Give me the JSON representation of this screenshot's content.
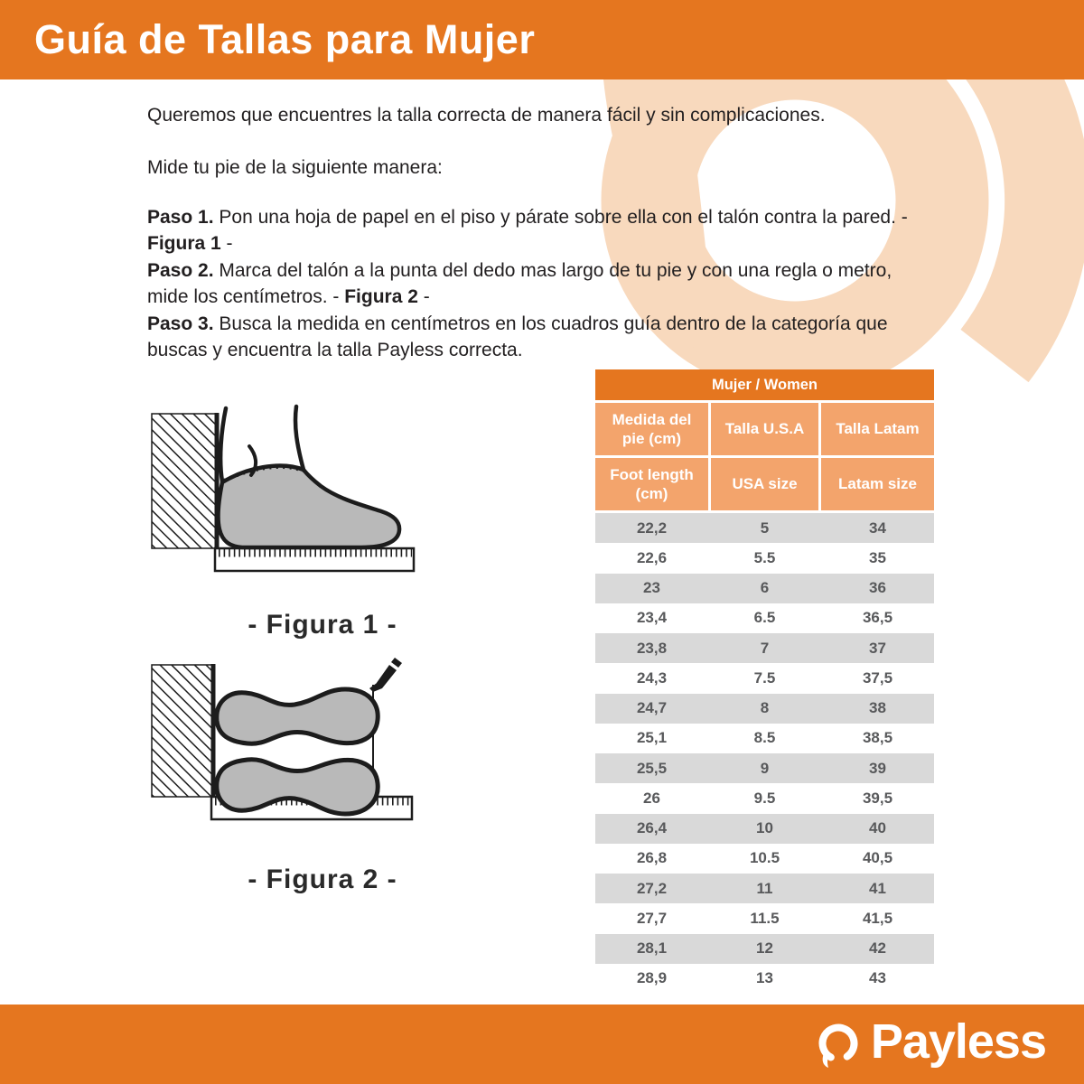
{
  "header": {
    "title": "Guía de Tallas para Mujer"
  },
  "intro": {
    "line1": "Queremos que encuentres la talla correcta de manera fácil y sin complicaciones.",
    "line2": "Mide tu pie de la siguiente manera:"
  },
  "steps": [
    {
      "label": "Paso 1.",
      "before": " Pon una hoja de papel en el piso y párate sobre ella con el talón contra la pared. - ",
      "figure": "Figura 1",
      "after": " -"
    },
    {
      "label": "Paso 2.",
      "before": " Marca del talón a la punta del dedo mas largo de tu pie y con una regla o metro, mide los centímetros. - ",
      "figure": "Figura 2",
      "after": " -"
    },
    {
      "label": "Paso 3.",
      "before": " Busca la medida en centímetros en los cuadros guía dentro de la categoría que buscas y encuentra la talla Payless correcta.",
      "figure": "",
      "after": ""
    }
  ],
  "figures": {
    "figure1_caption": "- Figura 1 -",
    "figure2_caption": "- Figura 2 -"
  },
  "size_table": {
    "title": "Mujer / Women",
    "header_row1": [
      "Medida del pie (cm)",
      "Talla U.S.A",
      "Talla Latam"
    ],
    "header_row2": [
      "Foot length (cm)",
      "USA size",
      "Latam size"
    ],
    "rows": [
      [
        "22,2",
        "5",
        "34"
      ],
      [
        "22,6",
        "5.5",
        "35"
      ],
      [
        "23",
        "6",
        "36"
      ],
      [
        "23,4",
        "6.5",
        "36,5"
      ],
      [
        "23,8",
        "7",
        "37"
      ],
      [
        "24,3",
        "7.5",
        "37,5"
      ],
      [
        "24,7",
        "8",
        "38"
      ],
      [
        "25,1",
        "8.5",
        "38,5"
      ],
      [
        "25,5",
        "9",
        "39"
      ],
      [
        "26",
        "9.5",
        "39,5"
      ],
      [
        "26,4",
        "10",
        "40"
      ],
      [
        "26,8",
        "10.5",
        "40,5"
      ],
      [
        "27,2",
        "11",
        "41"
      ],
      [
        "27,7",
        "11.5",
        "41,5"
      ],
      [
        "28,1",
        "12",
        "42"
      ],
      [
        "28,9",
        "13",
        "43"
      ]
    ]
  },
  "footer": {
    "brand": "Payless"
  },
  "colors": {
    "brand_orange": "#e5761f",
    "table_header_cell": "#f3a46c",
    "row_gray": "#d9d9d9",
    "row_text": "#58595b",
    "swirl_peach": "#f8d9bd"
  }
}
